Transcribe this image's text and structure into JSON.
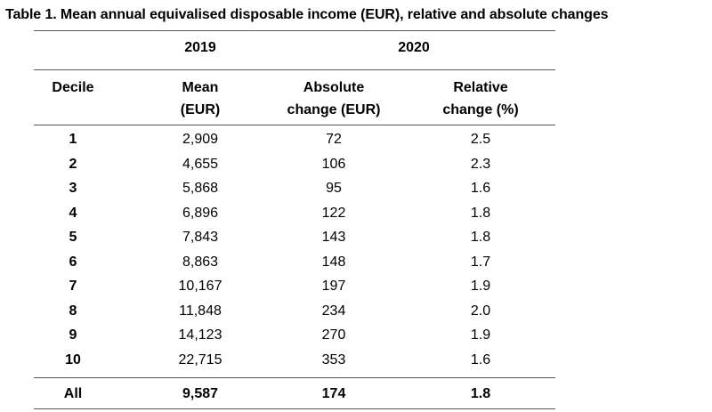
{
  "table": {
    "title": "Table 1. Mean annual equivalised disposable income (EUR), relative and absolute changes",
    "year_headers": {
      "year_2019": "2019",
      "year_2020": "2020"
    },
    "column_headers": {
      "decile": "Decile",
      "mean_line1": "Mean",
      "mean_line2": "(EUR)",
      "abs_line1": "Absolute",
      "abs_line2": "change (EUR)",
      "rel_line1": "Relative",
      "rel_line2": "change (%)"
    },
    "rows": [
      {
        "decile": "1",
        "mean": "2,909",
        "abs": "72",
        "rel": "2.5"
      },
      {
        "decile": "2",
        "mean": "4,655",
        "abs": "106",
        "rel": "2.3"
      },
      {
        "decile": "3",
        "mean": "5,868",
        "abs": "95",
        "rel": "1.6"
      },
      {
        "decile": "4",
        "mean": "6,896",
        "abs": "122",
        "rel": "1.8"
      },
      {
        "decile": "5",
        "mean": "7,843",
        "abs": "143",
        "rel": "1.8"
      },
      {
        "decile": "6",
        "mean": "8,863",
        "abs": "148",
        "rel": "1.7"
      },
      {
        "decile": "7",
        "mean": "10,167",
        "abs": "197",
        "rel": "1.9"
      },
      {
        "decile": "8",
        "mean": "11,848",
        "abs": "234",
        "rel": "2.0"
      },
      {
        "decile": "9",
        "mean": "14,123",
        "abs": "270",
        "rel": "1.9"
      },
      {
        "decile": "10",
        "mean": "22,715",
        "abs": "353",
        "rel": "1.6"
      }
    ],
    "total": {
      "decile": "All",
      "mean": "9,587",
      "abs": "174",
      "rel": "1.8"
    }
  }
}
